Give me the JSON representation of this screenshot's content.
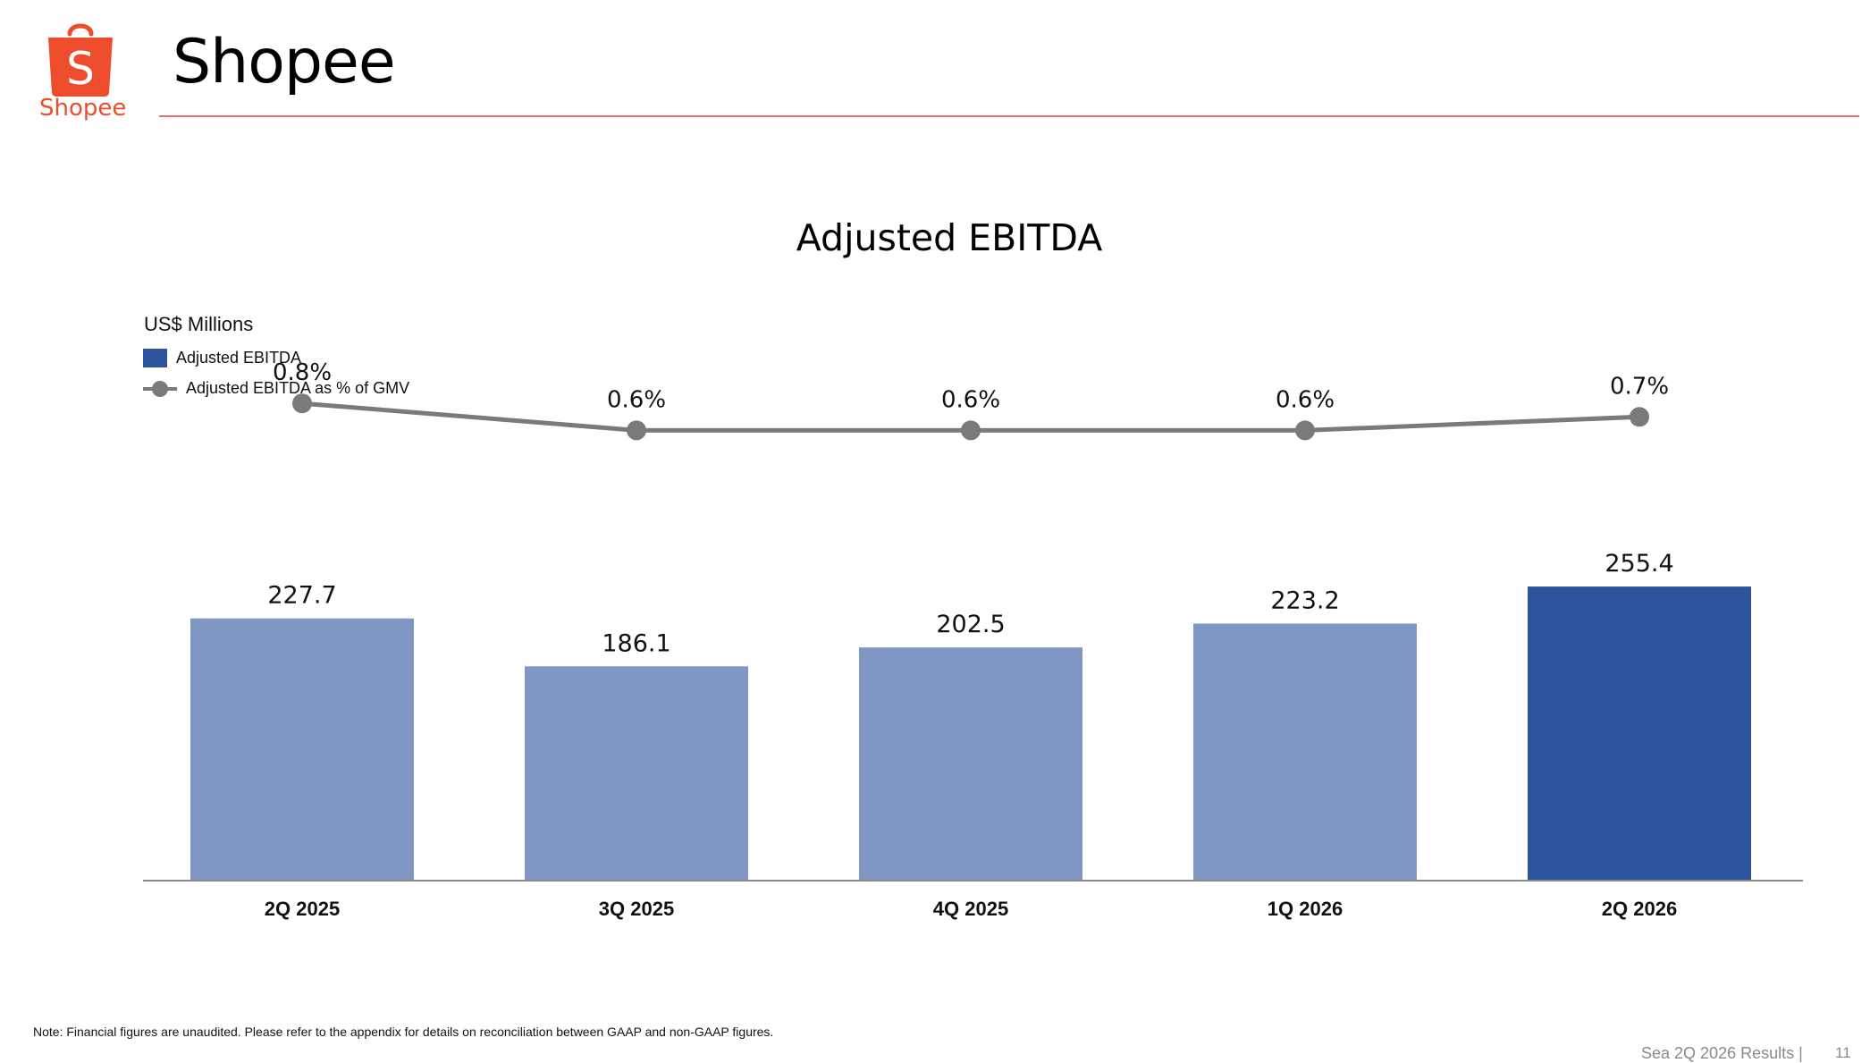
{
  "brand": {
    "logo_letter": "S",
    "logo_wordmark": "Shopee",
    "brand_color": "#ee4d2d"
  },
  "header": {
    "title": "Shopee",
    "rule_color": "#e0716b"
  },
  "chart_data": {
    "type": "bar",
    "title": "Adjusted EBITDA",
    "unit_label": "US$ Millions",
    "categories": [
      "2Q 2025",
      "3Q 2025",
      "4Q 2025",
      "1Q 2026",
      "2Q 2026"
    ],
    "series": [
      {
        "name": "Adjusted EBITDA",
        "type": "bar",
        "values": [
          227.7,
          186.1,
          202.5,
          223.2,
          255.4
        ],
        "labels": [
          "227.7",
          "186.1",
          "202.5",
          "223.2",
          "255.4"
        ],
        "color": "#7f97c2",
        "highlight_color": "#2f549e",
        "highlight_index": 4
      },
      {
        "name": "Adjusted EBITDA as % of GMV",
        "type": "line",
        "values": [
          0.8,
          0.6,
          0.6,
          0.6,
          0.7
        ],
        "labels": [
          "0.8%",
          "0.6%",
          "0.6%",
          "0.6%",
          "0.7%"
        ],
        "color": "#7a7a7a"
      }
    ],
    "legend_placement": "top-left",
    "grid": false
  },
  "footer": {
    "note": "Note: Financial figures are unaudited. Please refer to the appendix for details on reconciliation between GAAP and non-GAAP figures.",
    "label": "Sea 2Q 2026 Results |",
    "page": "11"
  }
}
